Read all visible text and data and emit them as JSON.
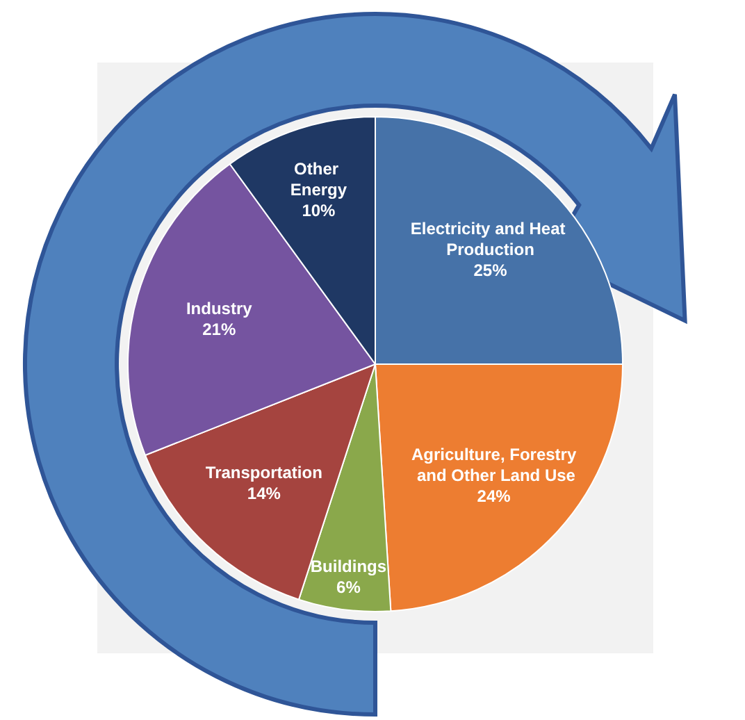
{
  "chart_data": {
    "type": "pie",
    "categories": [
      "Electricity and Heat Production",
      "Agriculture, Forestry and Other Land Use",
      "Buildings",
      "Transportation",
      "Industry",
      "Other Energy"
    ],
    "values": [
      25,
      24,
      6,
      14,
      21,
      10
    ],
    "value_labels": [
      "25%",
      "24%",
      "6%",
      "14%",
      "21%",
      "10%"
    ],
    "colors": [
      "#4672a8",
      "#ed7d31",
      "#8aa84b",
      "#a5443f",
      "#7554a0",
      "#1f3864"
    ]
  }
}
